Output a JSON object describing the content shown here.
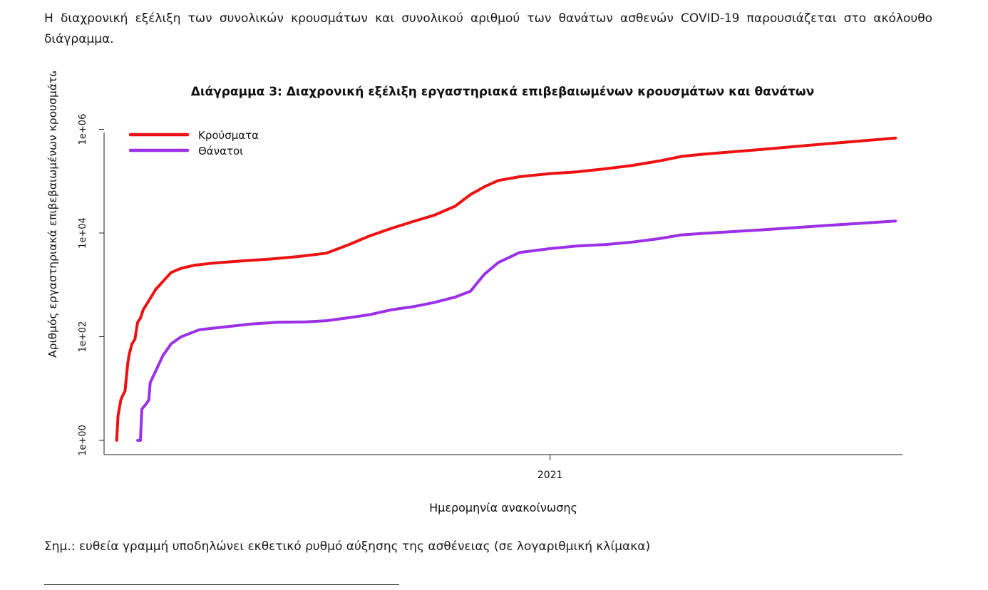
{
  "paper": {
    "intro_text": "Η διαχρονική εξέλιξη των συνολικών κρουσμάτων και συνολικού αριθμού των θανάτων ασθενών COVID-19 παρουσιάζεται στο ακόλουθο διάγραμμα.",
    "note_text": "Σημ.: ευθεία γραμμή υποδηλώνει εκθετικό ρυθμό αύξησης της ασθένειας (σε λογαριθμική κλίμακα)"
  },
  "chart_data": {
    "type": "line",
    "title": "Διάγραμμα 3: Διαχρονική εξέλιξη εργαστηριακά επιβεβαιωμένων κρουσμάτων και θανάτων",
    "xlabel": "Ημερομηνία ανακοίνωσης",
    "ylabel": "Αριθμός εργαστηριακά επιβεβαιωμένων κρουσμάτων και θανάτων",
    "y_scale": "log10",
    "ylim": [
      1,
      1000000
    ],
    "yticks": [
      {
        "value": 1,
        "label": "1e+00"
      },
      {
        "value": 100,
        "label": "1e+02"
      },
      {
        "value": 10000,
        "label": "1e+04"
      },
      {
        "value": 1000000,
        "label": "1e+06"
      }
    ],
    "xlim": [
      "2020-02-17",
      "2021-09-10"
    ],
    "xticks": [
      {
        "value": "2021-01-01",
        "label": "2021"
      }
    ],
    "legend_position": "top-left",
    "grid": false,
    "series": [
      {
        "name": "Κρούσματα",
        "color": "#ee1111",
        "points": [
          {
            "date": "2020-02-26",
            "value": 1
          },
          {
            "date": "2020-02-27",
            "value": 3
          },
          {
            "date": "2020-02-29",
            "value": 6
          },
          {
            "date": "2020-03-01",
            "value": 7
          },
          {
            "date": "2020-03-03",
            "value": 9
          },
          {
            "date": "2020-03-05",
            "value": 31
          },
          {
            "date": "2020-03-06",
            "value": 46
          },
          {
            "date": "2020-03-08",
            "value": 73
          },
          {
            "date": "2020-03-10",
            "value": 89
          },
          {
            "date": "2020-03-12",
            "value": 190
          },
          {
            "date": "2020-03-14",
            "value": 228
          },
          {
            "date": "2020-03-16",
            "value": 331
          },
          {
            "date": "2020-03-20",
            "value": 495
          },
          {
            "date": "2020-03-25",
            "value": 821
          },
          {
            "date": "2020-03-30",
            "value": 1156
          },
          {
            "date": "2020-04-05",
            "value": 1735
          },
          {
            "date": "2020-04-12",
            "value": 2081
          },
          {
            "date": "2020-04-22",
            "value": 2401
          },
          {
            "date": "2020-05-05",
            "value": 2632
          },
          {
            "date": "2020-05-25",
            "value": 2882
          },
          {
            "date": "2020-06-15",
            "value": 3148
          },
          {
            "date": "2020-07-05",
            "value": 3519
          },
          {
            "date": "2020-07-25",
            "value": 4077
          },
          {
            "date": "2020-08-10",
            "value": 5942
          },
          {
            "date": "2020-08-25",
            "value": 8819
          },
          {
            "date": "2020-09-10",
            "value": 12452
          },
          {
            "date": "2020-09-25",
            "value": 16627
          },
          {
            "date": "2020-10-10",
            "value": 21987
          },
          {
            "date": "2020-10-25",
            "value": 32752
          },
          {
            "date": "2020-11-05",
            "value": 55054
          },
          {
            "date": "2020-11-15",
            "value": 77937
          },
          {
            "date": "2020-11-25",
            "value": 103034
          },
          {
            "date": "2020-12-10",
            "value": 121715
          },
          {
            "date": "2021-01-01",
            "value": 140099
          },
          {
            "date": "2021-01-20",
            "value": 151277
          },
          {
            "date": "2021-02-10",
            "value": 174304
          },
          {
            "date": "2021-03-01",
            "value": 201651
          },
          {
            "date": "2021-03-20",
            "value": 245000
          },
          {
            "date": "2021-04-05",
            "value": 300000
          },
          {
            "date": "2021-04-20",
            "value": 330000
          },
          {
            "date": "2021-06-01",
            "value": 410000
          },
          {
            "date": "2021-07-15",
            "value": 520000
          },
          {
            "date": "2021-09-05",
            "value": 680000
          }
        ]
      },
      {
        "name": "Θάνατοι",
        "color": "#9b30e6",
        "points": [
          {
            "date": "2020-03-12",
            "value": 1
          },
          {
            "date": "2020-03-14",
            "value": 1
          },
          {
            "date": "2020-03-15",
            "value": 4
          },
          {
            "date": "2020-03-18",
            "value": 5
          },
          {
            "date": "2020-03-20",
            "value": 6
          },
          {
            "date": "2020-03-21",
            "value": 13
          },
          {
            "date": "2020-03-25",
            "value": 22
          },
          {
            "date": "2020-03-30",
            "value": 43
          },
          {
            "date": "2020-04-05",
            "value": 73
          },
          {
            "date": "2020-04-12",
            "value": 99
          },
          {
            "date": "2020-04-25",
            "value": 136
          },
          {
            "date": "2020-05-10",
            "value": 151
          },
          {
            "date": "2020-06-01",
            "value": 175
          },
          {
            "date": "2020-06-20",
            "value": 190
          },
          {
            "date": "2020-07-10",
            "value": 193
          },
          {
            "date": "2020-07-25",
            "value": 203
          },
          {
            "date": "2020-08-10",
            "value": 232
          },
          {
            "date": "2020-08-25",
            "value": 266
          },
          {
            "date": "2020-09-10",
            "value": 332
          },
          {
            "date": "2020-09-25",
            "value": 379
          },
          {
            "date": "2020-10-10",
            "value": 455
          },
          {
            "date": "2020-10-25",
            "value": 580
          },
          {
            "date": "2020-11-05",
            "value": 750
          },
          {
            "date": "2020-11-15",
            "value": 1600
          },
          {
            "date": "2020-11-25",
            "value": 2700
          },
          {
            "date": "2020-12-10",
            "value": 4200
          },
          {
            "date": "2021-01-01",
            "value": 5000
          },
          {
            "date": "2021-01-20",
            "value": 5600
          },
          {
            "date": "2021-02-10",
            "value": 6000
          },
          {
            "date": "2021-03-01",
            "value": 6700
          },
          {
            "date": "2021-03-20",
            "value": 7800
          },
          {
            "date": "2021-04-05",
            "value": 9200
          },
          {
            "date": "2021-04-20",
            "value": 9800
          },
          {
            "date": "2021-06-01",
            "value": 11500
          },
          {
            "date": "2021-07-15",
            "value": 13800
          },
          {
            "date": "2021-09-05",
            "value": 17000
          }
        ]
      }
    ]
  }
}
